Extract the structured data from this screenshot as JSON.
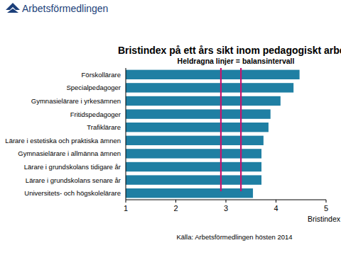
{
  "chart_data": {
    "type": "bar",
    "orientation": "horizontal",
    "logo": "Arbetsförmedlingen",
    "title": "Bristindex på ett års sikt inom pedagogiskt arbete",
    "subtitle": "Heldragna linjer = balansintervall",
    "x_label": "Bristindex",
    "source": "Källa: Arbetsförmedlingen hösten 2014",
    "categories": [
      "Förskollärare",
      "Specialpedagoger",
      "Gymnasielärare i yrkesämnen",
      "Fritidspedagoger",
      "Trafiklärare",
      "Lärare i estetiska och praktiska ämnen",
      "Gymnasielärare i allmänna ämnen",
      "Lärare i grundskolans tidigare år",
      "Lärare i grundskolans senare år",
      "Universitets- och högskolelärare"
    ],
    "values": [
      4.47,
      4.35,
      4.09,
      3.89,
      3.85,
      3.75,
      3.71,
      3.71,
      3.71,
      3.54
    ],
    "color": "#1f7fa3",
    "xlim": [
      1,
      5
    ],
    "xticks": [
      1,
      2,
      3,
      4,
      5
    ],
    "balance_interval": [
      2.9,
      3.3
    ]
  }
}
